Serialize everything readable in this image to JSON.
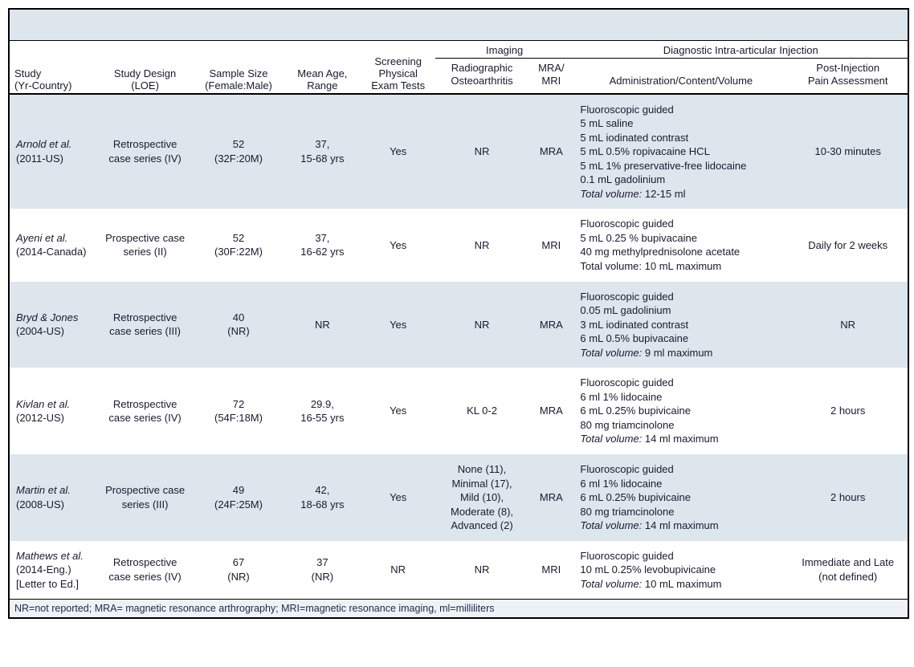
{
  "colors": {
    "header_bg": "#dde5ed",
    "row_shade": "#dde5ed",
    "footer_bg": "#eef2f6",
    "text": "#1a1a2e",
    "border": "#000000"
  },
  "columns": {
    "study": "Study\n(Yr-Country)",
    "design": "Study Design\n(LOE)",
    "sample": "Sample Size\n(Female:Male)",
    "age": "Mean Age,\nRange",
    "screen": "Screening\nPhysical\nExam Tests",
    "imaging_group": "Imaging",
    "radio": "Radiographic\nOsteoarthritis",
    "mra": "MRA/\nMRI",
    "inject_group": "Diagnostic Intra-articular Injection",
    "admin": "Administration/Content/Volume",
    "pain": "Post-Injection\nPain Assessment"
  },
  "total_volume_label": "Total volume:",
  "rows": [
    {
      "study_italic": "Arnold et al.",
      "study_plain": "(2011-US)",
      "design": "Retrospective case series (IV)",
      "sample": "52\n(32F:20M)",
      "age": "37,\n15-68 yrs",
      "screen": "Yes",
      "radio": "NR",
      "mra": "MRA",
      "admin_lines": [
        "Fluoroscopic guided",
        "5 mL saline",
        "5 mL iodinated contrast",
        "5 mL 0.5% ropivacaine HCL",
        "5 mL 1% preservative-free lidocaine",
        "0.1 mL gadolinium"
      ],
      "total_volume": "12-15 ml",
      "pain": "10-30 minutes",
      "shade": true
    },
    {
      "study_italic": "Ayeni et al.",
      "study_plain": "(2014-Canada)",
      "design": "Prospective case series (II)",
      "sample": "52\n(30F:22M)",
      "age": "37,\n16-62 yrs",
      "screen": "Yes",
      "radio": "NR",
      "mra": "MRI",
      "admin_lines": [
        "Fluoroscopic guided",
        "5 mL 0.25 % bupivacaine",
        "40 mg methylprednisolone acetate",
        "Total volume: 10 mL maximum"
      ],
      "total_volume": "",
      "pain": "Daily for 2 weeks",
      "shade": false
    },
    {
      "study_italic": "Bryd & Jones",
      "study_plain": "(2004-US)",
      "design": "Retrospective case series (III)",
      "sample": "40\n(NR)",
      "age": "NR",
      "screen": "Yes",
      "radio": "NR",
      "mra": "MRA",
      "admin_lines": [
        "Fluoroscopic guided",
        "0.05 mL gadolinium",
        "3 mL iodinated contrast",
        "6 mL 0.5% bupivacaine"
      ],
      "total_volume": "9 ml maximum",
      "pain": "NR",
      "shade": true
    },
    {
      "study_italic": "Kivlan et al.",
      "study_plain": "(2012-US)",
      "design": "Retrospective case series (IV)",
      "sample": "72\n(54F:18M)",
      "age": "29.9,\n16-55 yrs",
      "screen": "Yes",
      "radio": "KL 0-2",
      "mra": "MRA",
      "admin_lines": [
        "Fluoroscopic guided",
        "6 ml 1% lidocaine",
        "6 mL 0.25% bupivicaine",
        "80 mg triamcinolone"
      ],
      "total_volume": "14 ml maximum",
      "pain": "2 hours",
      "shade": false
    },
    {
      "study_italic": "Martin et al.",
      "study_plain": "(2008-US)",
      "design": "Prospective case series (III)",
      "sample": "49\n(24F:25M)",
      "age": "42,\n18-68 yrs",
      "screen": "Yes",
      "radio": "None (11),\nMinimal (17),\nMild (10),\nModerate (8),\nAdvanced (2)",
      "mra": "MRA",
      "admin_lines": [
        "Fluoroscopic guided",
        "6 ml 1% lidocaine",
        "6 mL 0.25% bupivicaine",
        "80 mg triamcinolone"
      ],
      "total_volume": "14 ml maximum",
      "pain": "2 hours",
      "shade": true
    },
    {
      "study_italic": "Mathews et al.",
      "study_plain": "(2014-Eng.)\n[Letter to Ed.]",
      "design": "Retrospective case series (IV)",
      "sample": "67\n(NR)",
      "age": "37\n(NR)",
      "screen": "NR",
      "radio": "NR",
      "mra": "MRI",
      "admin_lines": [
        "Fluoroscopic guided",
        "10 mL 0.25% levobupivicaine"
      ],
      "total_volume": "10 mL maximum",
      "pain": "Immediate and Late (not defined)",
      "shade": false
    }
  ],
  "footer": "NR=not reported; MRA= magnetic resonance arthrography; MRI=magnetic resonance imaging, ml=milliliters"
}
